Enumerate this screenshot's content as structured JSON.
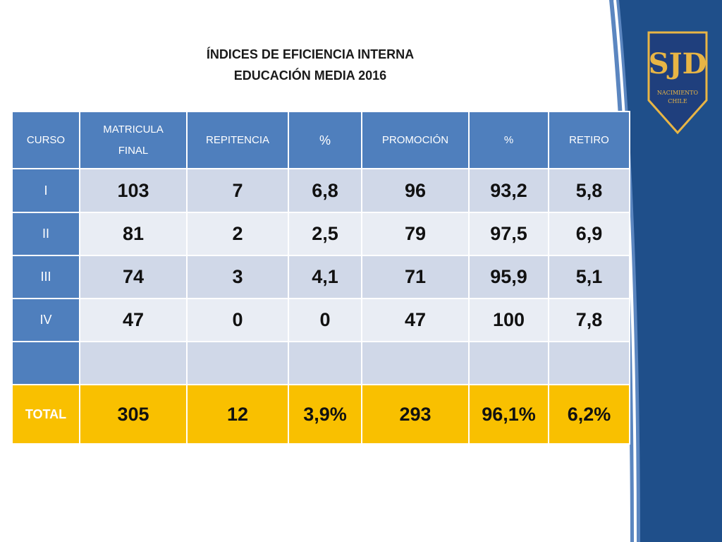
{
  "title": {
    "line1": "ÍNDICES DE EFICIENCIA INTERNA",
    "line2": "EDUCACIÓN MEDIA 2016"
  },
  "logo": {
    "text": "SJD",
    "subtext1": "NACIMIENTO",
    "subtext2": "CHILE",
    "colors": {
      "shield": "#1f3f7d",
      "border": "#e8b545",
      "text": "#e8b545"
    }
  },
  "colors": {
    "header": "#4f7fbd",
    "row_light": "#d0d8e8",
    "row_pale": "#e9edf4",
    "total": "#f9c000",
    "band_dark": "#1f4f8a",
    "band_light": "#5b86c0"
  },
  "table": {
    "headers": [
      {
        "line1": "CURSO",
        "line2": ""
      },
      {
        "line1": "MATRICULA",
        "line2": "FINAL"
      },
      {
        "line1": "REPITENCIA",
        "line2": ""
      },
      {
        "line1": "%",
        "line2": ""
      },
      {
        "line1": "PROMOCIÓN",
        "line2": ""
      },
      {
        "line1": "%",
        "line2": ""
      },
      {
        "line1": "RETIRO",
        "line2": ""
      }
    ],
    "rows": [
      {
        "curso": "I",
        "values": [
          "103",
          "7",
          "6,8",
          "96",
          "93,2",
          "5,8"
        ]
      },
      {
        "curso": "II",
        "values": [
          "81",
          "2",
          "2,5",
          "79",
          "97,5",
          "6,9"
        ]
      },
      {
        "curso": "III",
        "values": [
          "74",
          "3",
          "4,1",
          "71",
          "95,9",
          "5,1"
        ]
      },
      {
        "curso": "IV",
        "values": [
          "47",
          "0",
          "0",
          "47",
          "100",
          "7,8"
        ]
      },
      {
        "curso": "",
        "values": [
          "",
          "",
          "",
          "",
          "",
          ""
        ]
      }
    ],
    "total": {
      "label": "TOTAL",
      "values": [
        "305",
        "12",
        "3,9%",
        "293",
        "96,1%",
        "6,2%"
      ]
    }
  }
}
